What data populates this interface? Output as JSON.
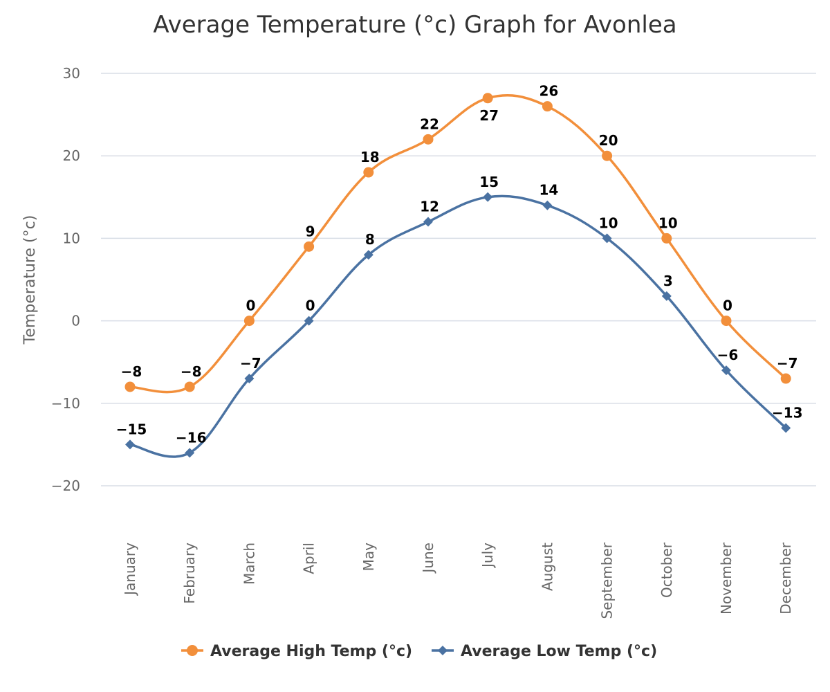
{
  "chart_data": {
    "type": "line",
    "title": "Average Temperature (°c) Graph for Avonlea",
    "xlabel": "",
    "ylabel": "Temperature (°c)",
    "ylim": [
      -20,
      30
    ],
    "yticks": [
      30,
      20,
      10,
      0,
      -10,
      -20
    ],
    "ytick_labels": [
      "30",
      "20",
      "10",
      "0",
      "−10",
      "−20"
    ],
    "grid": true,
    "legend_position": "bottom-center",
    "categories": [
      "January",
      "February",
      "March",
      "April",
      "May",
      "June",
      "July",
      "August",
      "September",
      "October",
      "November",
      "December"
    ],
    "series": [
      {
        "name": "Average High Temp (°c)",
        "color": "#f28f3b",
        "marker": "circle",
        "values": [
          -8,
          -8,
          0,
          9,
          18,
          22,
          27,
          26,
          20,
          10,
          0,
          -7
        ],
        "labels": [
          "−8",
          "−8",
          "0",
          "9",
          "18",
          "22",
          "27",
          "26",
          "20",
          "10",
          "0",
          "−7"
        ]
      },
      {
        "name": "Average Low Temp (°c)",
        "color": "#4a72a2",
        "marker": "diamond",
        "values": [
          -15,
          -16,
          -7,
          0,
          8,
          12,
          15,
          14,
          10,
          3,
          -6,
          -13
        ],
        "labels": [
          "−15",
          "−16",
          "−7",
          "0",
          "8",
          "12",
          "15",
          "14",
          "10",
          "3",
          "−6",
          "−13"
        ]
      }
    ]
  }
}
